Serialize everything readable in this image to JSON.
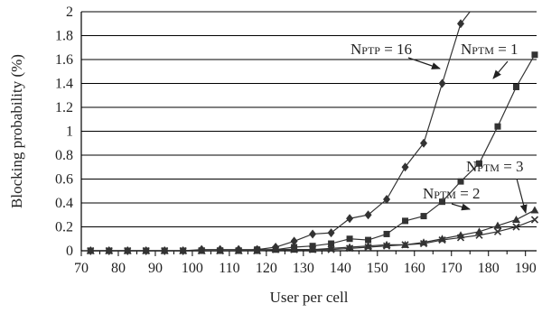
{
  "chart_data": {
    "type": "line",
    "xlabel": "User per cell",
    "ylabel": "Blocking probability (%)",
    "xlim": [
      70,
      193
    ],
    "ylim": [
      0,
      2
    ],
    "x_ticks": [
      "70",
      "80",
      "90",
      "100",
      "110",
      "120",
      "130",
      "140",
      "150",
      "160",
      "170",
      "180",
      "190"
    ],
    "y_ticks": [
      "0",
      "0.2",
      "0.4",
      "0.6",
      "0.8",
      "1",
      "1.2",
      "1.4",
      "1.6",
      "1.8",
      "2"
    ],
    "grid": "horizontal",
    "series": [
      {
        "name": "PTP = 16",
        "marker": "diamond",
        "x": [
          72.5,
          77.5,
          82.5,
          87.5,
          92.5,
          97.5,
          102.5,
          107.5,
          112.5,
          117.5,
          122.5,
          127.5,
          132.5,
          137.5,
          142.5,
          147.5,
          152.5,
          157.5,
          162.5,
          167.5,
          172.5,
          175
        ],
        "y": [
          0,
          0,
          0,
          0,
          0,
          0,
          0.01,
          0.01,
          0.01,
          0.01,
          0.03,
          0.08,
          0.14,
          0.15,
          0.27,
          0.3,
          0.43,
          0.7,
          0.9,
          1.4,
          1.9,
          2.0
        ]
      },
      {
        "name": "PTM = 1",
        "marker": "square",
        "x": [
          72.5,
          77.5,
          82.5,
          87.5,
          92.5,
          97.5,
          102.5,
          107.5,
          112.5,
          117.5,
          122.5,
          127.5,
          132.5,
          137.5,
          142.5,
          147.5,
          152.5,
          157.5,
          162.5,
          167.5,
          172.5,
          177.5,
          182.5,
          187.5,
          192.5
        ],
        "y": [
          0,
          0,
          0,
          0,
          0,
          0,
          0,
          0,
          0,
          0.01,
          0.01,
          0.03,
          0.04,
          0.06,
          0.1,
          0.09,
          0.14,
          0.25,
          0.29,
          0.41,
          0.58,
          0.73,
          1.04,
          1.37,
          1.64
        ]
      },
      {
        "name": "PTM = 3",
        "marker": "triangle",
        "x": [
          72.5,
          77.5,
          82.5,
          87.5,
          92.5,
          97.5,
          102.5,
          107.5,
          112.5,
          117.5,
          122.5,
          127.5,
          132.5,
          137.5,
          142.5,
          147.5,
          152.5,
          157.5,
          162.5,
          167.5,
          172.5,
          177.5,
          182.5,
          187.5,
          192.5
        ],
        "y": [
          0,
          0,
          0,
          0,
          0,
          0,
          0,
          0,
          0,
          0,
          0.01,
          0.01,
          0.01,
          0.02,
          0.03,
          0.04,
          0.05,
          0.05,
          0.07,
          0.1,
          0.13,
          0.16,
          0.21,
          0.26,
          0.34
        ]
      },
      {
        "name": "PTM = 2",
        "marker": "x",
        "x": [
          72.5,
          77.5,
          82.5,
          87.5,
          92.5,
          97.5,
          102.5,
          107.5,
          112.5,
          117.5,
          122.5,
          127.5,
          132.5,
          137.5,
          142.5,
          147.5,
          152.5,
          157.5,
          162.5,
          167.5,
          172.5,
          177.5,
          182.5,
          187.5,
          192.5
        ],
        "y": [
          0,
          0,
          0,
          0,
          0,
          0,
          0,
          0,
          0,
          0,
          0.01,
          0.01,
          0.01,
          0.01,
          0.02,
          0.03,
          0.04,
          0.05,
          0.06,
          0.09,
          0.11,
          0.13,
          0.16,
          0.2,
          0.26
        ]
      }
    ],
    "annotations": [
      {
        "base": "N",
        "sub": "PTP",
        "rest": " = 16",
        "target_series": 0
      },
      {
        "base": "N",
        "sub": "PTM",
        "rest": " = 1",
        "target_series": 1
      },
      {
        "base": "N",
        "sub": "PTM",
        "rest": " = 3",
        "target_series": 2
      },
      {
        "base": "N",
        "sub": "PTM",
        "rest": " = 2",
        "target_series": 3
      }
    ]
  }
}
